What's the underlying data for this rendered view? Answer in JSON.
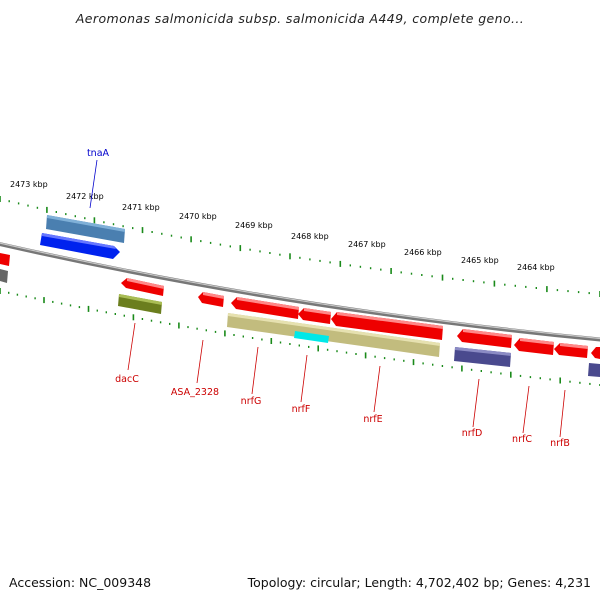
{
  "title": "Aeromonas salmonicida subsp. salmonicida A449, complete geno...",
  "footer": {
    "accession": "Accession: NC_009348",
    "summary": "Topology: circular; Length: 4,702,402 bp; Genes: 4,231"
  },
  "colors": {
    "cds_red": "#ee0000",
    "blue_gene": "#0022ee",
    "steel_blue_gene": "#4a7fb0",
    "olive_gene": "#6b7e1e",
    "khaki_gene": "#c2bc7e",
    "cyan_feature": "#00e8e8",
    "slate_gene": "#4a4a8e",
    "backbone": "#888888",
    "tick": "#1a8a1a",
    "forward_label": "#0000cc",
    "reverse_label": "#cc0000"
  },
  "scale": {
    "unit": "kbp",
    "ticks": [
      "2473 kbp",
      "2472 kbp",
      "2471 kbp",
      "2470 kbp",
      "2469 kbp",
      "2468 kbp",
      "2467 kbp",
      "2466 kbp",
      "2465 kbp",
      "2464 kbp"
    ]
  },
  "genes": {
    "forward": [
      {
        "name": "tnaA",
        "color": "steel_blue_gene"
      },
      {
        "name": "",
        "color": "blue_gene"
      }
    ],
    "reverse": [
      {
        "name": "dacC",
        "color": "cds_red"
      },
      {
        "name": "ASA_2328",
        "color": "cds_red"
      },
      {
        "name": "nrfG",
        "color": "cds_red"
      },
      {
        "name": "nrfF",
        "color": "cds_red"
      },
      {
        "name": "nrfE",
        "color": "cds_red"
      },
      {
        "name": "nrfD",
        "color": "cds_red"
      },
      {
        "name": "nrfC",
        "color": "cds_red"
      },
      {
        "name": "nrfB",
        "color": "cds_red"
      }
    ]
  }
}
